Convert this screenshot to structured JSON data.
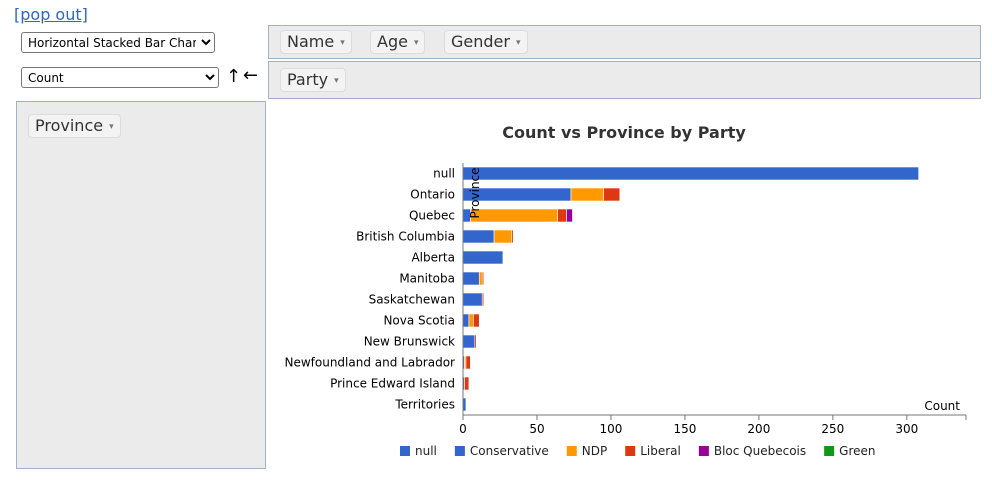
{
  "popout_label": "[pop out]",
  "renderer": {
    "selected": "Horizontal Stacked Bar Chart"
  },
  "aggregator": {
    "selected": "Count",
    "sort_arrow": "↑",
    "dir_arrow": "←"
  },
  "fields": {
    "unused": [
      {
        "label": "Name"
      },
      {
        "label": "Age"
      },
      {
        "label": "Gender"
      }
    ],
    "cols": [
      {
        "label": "Party"
      }
    ],
    "rows": [
      {
        "label": "Province"
      }
    ],
    "dropdown_glyph": "▾"
  },
  "chart_data": {
    "type": "bar",
    "orientation": "horizontal",
    "stacked": true,
    "title": "Count vs Province by Party",
    "xlabel": "Count",
    "ylabel": "Province",
    "xlim": [
      0,
      340
    ],
    "xticks": [
      0,
      50,
      100,
      150,
      200,
      250,
      300
    ],
    "legend_position": "bottom",
    "categories": [
      "null",
      "Ontario",
      "Quebec",
      "British Columbia",
      "Alberta",
      "Manitoba",
      "Saskatchewan",
      "Nova Scotia",
      "New Brunswick",
      "Newfoundland and Labrador",
      "Prince Edward Island",
      "Territories"
    ],
    "series": [
      {
        "name": "null",
        "color": "#3366cc",
        "values": [
          308,
          0,
          0,
          0,
          0,
          0,
          0,
          0,
          0,
          0,
          0,
          0
        ]
      },
      {
        "name": "Conservative",
        "color": "#3366cc",
        "values": [
          0,
          73,
          5,
          21,
          27,
          11,
          13,
          4,
          8,
          1,
          1,
          2
        ]
      },
      {
        "name": "NDP",
        "color": "#ff9900",
        "values": [
          0,
          22,
          59,
          12,
          0,
          2,
          0,
          3,
          0,
          1,
          0,
          0
        ]
      },
      {
        "name": "Liberal",
        "color": "#dc3912",
        "values": [
          0,
          11,
          6,
          1,
          0,
          1,
          1,
          4,
          1,
          3,
          3,
          0
        ]
      },
      {
        "name": "Bloc Quebecois",
        "color": "#990099",
        "values": [
          0,
          0,
          4,
          0,
          0,
          0,
          0,
          0,
          0,
          0,
          0,
          0
        ]
      },
      {
        "name": "Green",
        "color": "#109618",
        "values": [
          0,
          0,
          0,
          0,
          0,
          0,
          0,
          0,
          0,
          0,
          0,
          0
        ]
      }
    ]
  }
}
